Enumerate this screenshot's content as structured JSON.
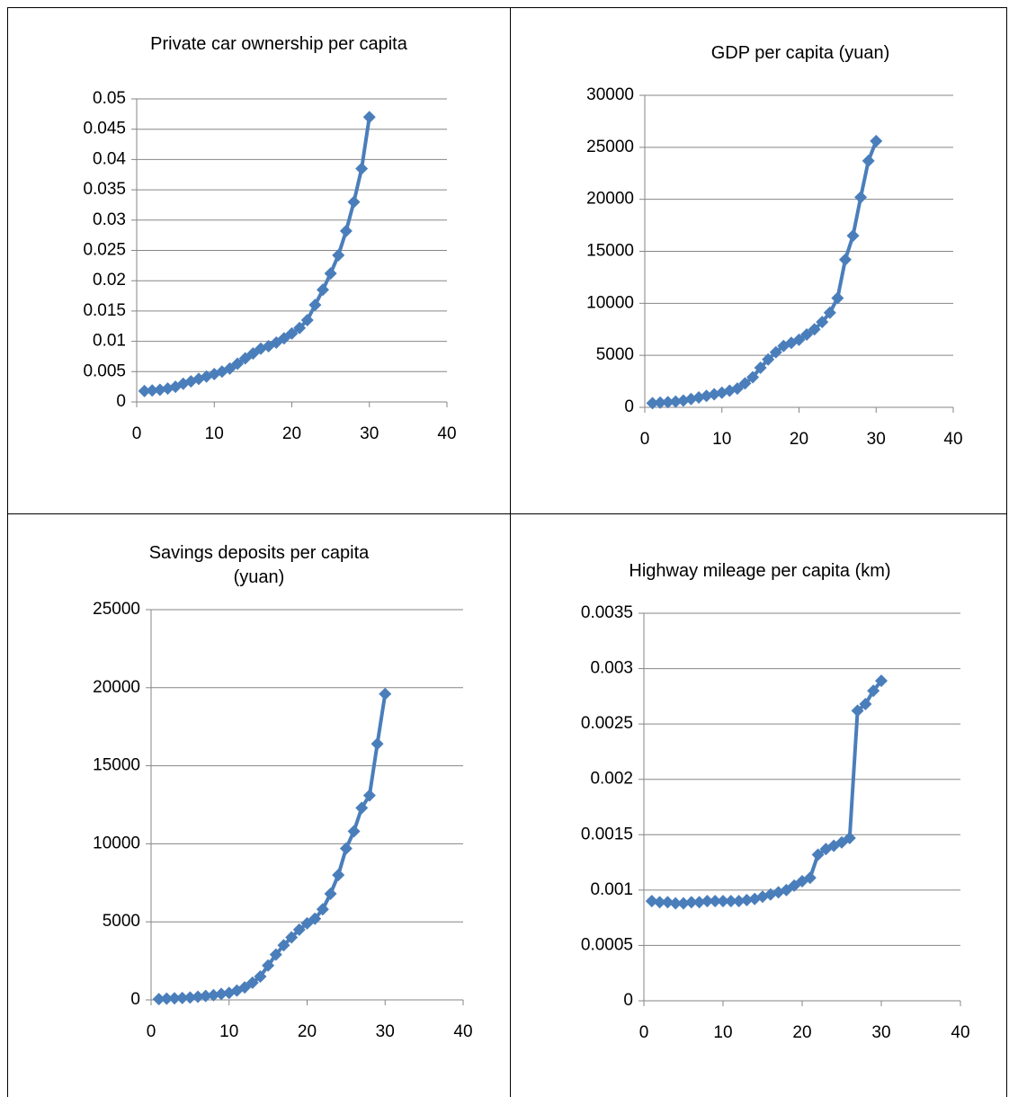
{
  "chart_data": [
    {
      "type": "line",
      "title": "Private car ownership per capita",
      "x": [
        1,
        2,
        3,
        4,
        5,
        6,
        7,
        8,
        9,
        10,
        11,
        12,
        13,
        14,
        15,
        16,
        17,
        18,
        19,
        20,
        21,
        22,
        23,
        24,
        25,
        26,
        27,
        28,
        29,
        30
      ],
      "values": [
        0.0018,
        0.0019,
        0.002,
        0.0022,
        0.0025,
        0.003,
        0.0034,
        0.0038,
        0.0042,
        0.0046,
        0.005,
        0.0055,
        0.0063,
        0.0072,
        0.008,
        0.0088,
        0.0092,
        0.0098,
        0.0105,
        0.0113,
        0.0122,
        0.0135,
        0.016,
        0.0185,
        0.0212,
        0.0242,
        0.0282,
        0.033,
        0.0385,
        0.047
      ],
      "color": "#4a7ebb",
      "xlim": [
        0,
        40
      ],
      "xticks": [
        0,
        10,
        20,
        30,
        40
      ],
      "ylim": [
        0,
        0.05
      ],
      "yticks": [
        0,
        0.005,
        0.01,
        0.015,
        0.02,
        0.025,
        0.03,
        0.035,
        0.04,
        0.045,
        0.05
      ],
      "grid": true
    },
    {
      "type": "line",
      "title": "GDP per capita (yuan)",
      "x": [
        1,
        2,
        3,
        4,
        5,
        6,
        7,
        8,
        9,
        10,
        11,
        12,
        13,
        14,
        15,
        16,
        17,
        18,
        19,
        20,
        21,
        22,
        23,
        24,
        25,
        26,
        27,
        28,
        29,
        30
      ],
      "values": [
        400,
        450,
        500,
        550,
        650,
        800,
        950,
        1100,
        1250,
        1400,
        1600,
        1800,
        2300,
        2900,
        3800,
        4600,
        5300,
        5900,
        6200,
        6500,
        7000,
        7500,
        8200,
        9100,
        10500,
        14200,
        16500,
        20200,
        23700,
        25600
      ],
      "color": "#4a7ebb",
      "xlim": [
        0,
        40
      ],
      "xticks": [
        0,
        10,
        20,
        30,
        40
      ],
      "ylim": [
        0,
        30000
      ],
      "yticks": [
        0,
        5000,
        10000,
        15000,
        20000,
        25000,
        30000
      ],
      "grid": true
    },
    {
      "type": "line",
      "title": "Savings deposits per capita (yuan)",
      "x": [
        1,
        2,
        3,
        4,
        5,
        6,
        7,
        8,
        9,
        10,
        11,
        12,
        13,
        14,
        15,
        16,
        17,
        18,
        19,
        20,
        21,
        22,
        23,
        24,
        25,
        26,
        27,
        28,
        29,
        30
      ],
      "values": [
        50,
        80,
        100,
        120,
        150,
        200,
        250,
        300,
        380,
        450,
        600,
        800,
        1100,
        1500,
        2200,
        2900,
        3500,
        4000,
        4500,
        4900,
        5200,
        5800,
        6800,
        8000,
        9700,
        10800,
        12300,
        13100,
        16400,
        19600
      ],
      "color": "#4a7ebb",
      "xlim": [
        0,
        40
      ],
      "xticks": [
        0,
        10,
        20,
        30,
        40
      ],
      "ylim": [
        0,
        25000
      ],
      "yticks": [
        0,
        5000,
        10000,
        15000,
        20000,
        25000
      ],
      "grid": true
    },
    {
      "type": "line",
      "title": "Highway mileage per capita (km)",
      "x": [
        1,
        2,
        3,
        4,
        5,
        6,
        7,
        8,
        9,
        10,
        11,
        12,
        13,
        14,
        15,
        16,
        17,
        18,
        19,
        20,
        21,
        22,
        23,
        24,
        25,
        26,
        27,
        28,
        29,
        30
      ],
      "values": [
        0.0009,
        0.00089,
        0.00089,
        0.00088,
        0.00088,
        0.00089,
        0.00089,
        0.0009,
        0.0009,
        0.0009,
        0.0009,
        0.0009,
        0.00091,
        0.00092,
        0.00094,
        0.00096,
        0.00098,
        0.001,
        0.00104,
        0.00108,
        0.00111,
        0.00132,
        0.00137,
        0.0014,
        0.00143,
        0.00147,
        0.00262,
        0.00268,
        0.0028,
        0.00289
      ],
      "color": "#4a7ebb",
      "xlim": [
        0,
        40
      ],
      "xticks": [
        0,
        10,
        20,
        30,
        40
      ],
      "ylim": [
        0,
        0.0035
      ],
      "yticks": [
        0,
        0.0005,
        0.001,
        0.0015,
        0.002,
        0.0025,
        0.003,
        0.0035
      ],
      "grid": true
    }
  ]
}
